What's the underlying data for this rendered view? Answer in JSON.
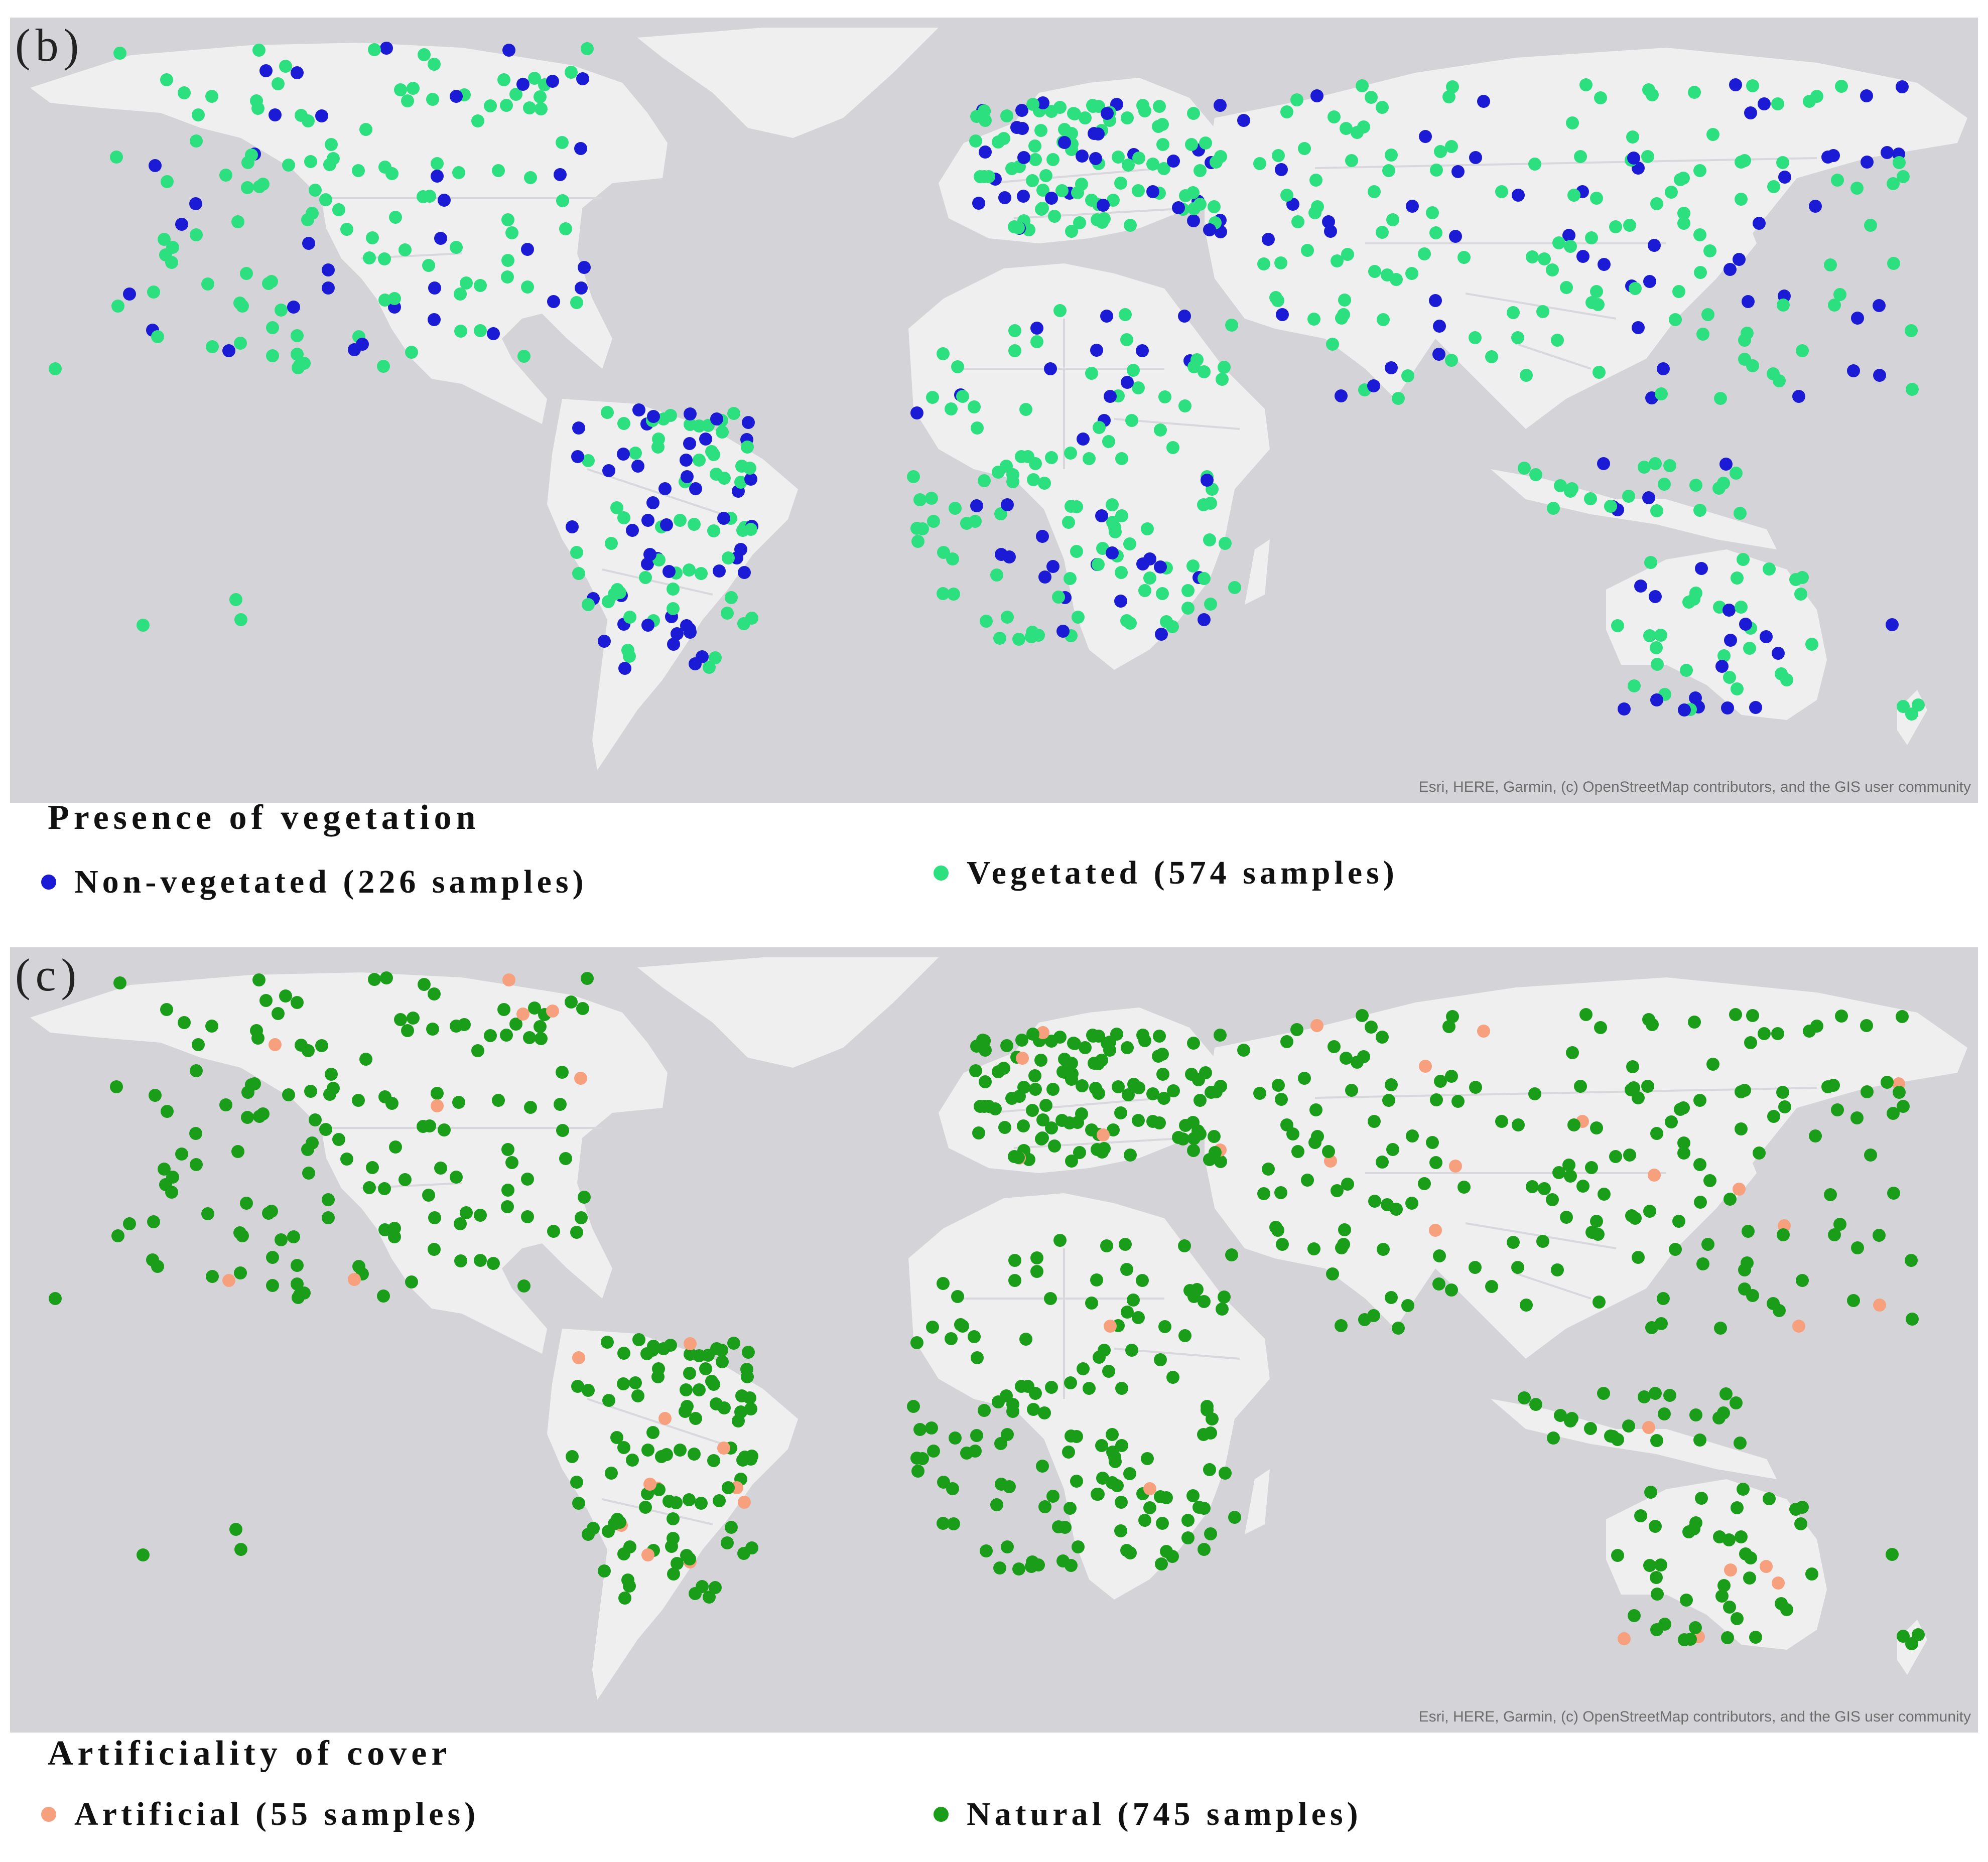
{
  "colors": {
    "ocean": "#d4d3d8",
    "land": "#efeff0",
    "border": "#d8d8dc",
    "non_vegetated": "#1b1bd6",
    "vegetated": "#2de07f",
    "artificial": "#f7a07d",
    "natural": "#1a9e1a"
  },
  "panel_b": {
    "label": "(b)",
    "attribution": "Esri, HERE, Garmin, (c) OpenStreetMap contributors, and the GIS user community",
    "legend_title": "Presence of vegetation",
    "legend": [
      {
        "label": "Non-vegetated (226 samples)",
        "color": "#1b1bd6",
        "icon": "blue-dot"
      },
      {
        "label": "Vegetated (574 samples)",
        "color": "#2de07f",
        "icon": "green-dot"
      }
    ]
  },
  "panel_c": {
    "label": "(c)",
    "attribution": "Esri, HERE, Garmin, (c) OpenStreetMap contributors, and the GIS user community",
    "legend_title": "Artificiality of cover",
    "legend": [
      {
        "label": "Artificial (55 samples)",
        "color": "#f7a07d",
        "icon": "salmon-dot"
      },
      {
        "label": "Natural (745 samples)",
        "color": "#1a9e1a",
        "icon": "darkgreen-dot"
      }
    ]
  }
}
